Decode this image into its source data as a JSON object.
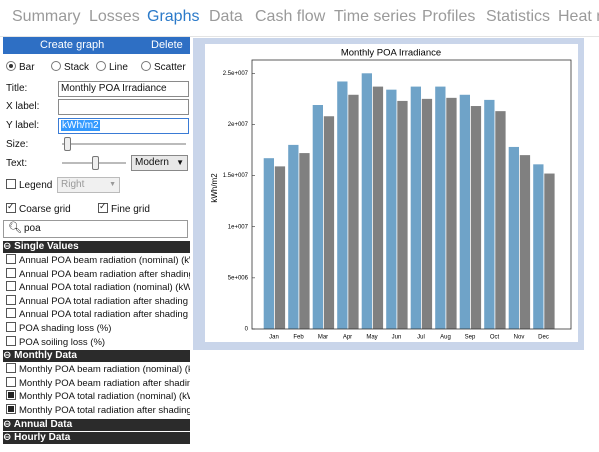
{
  "tabs": [
    "Summary",
    "Losses",
    "Graphs",
    "Data",
    "Cash flow",
    "Time series",
    "Profiles",
    "Statistics",
    "Heat m"
  ],
  "sidebar": {
    "create": "Create graph",
    "delete": "Delete",
    "types": [
      "Bar",
      "Stack",
      "Line",
      "Scatter"
    ],
    "title_label": "Title:",
    "title_value": "Monthly POA Irradiance",
    "xlabel_label": "X label:",
    "ylabel_label": "Y label:",
    "ylabel_value": "kWh/m2",
    "size_label": "Size:",
    "text_label": "Text:",
    "font": "Modern",
    "legend": "Legend",
    "legend_pos": "Right",
    "coarse_grid": "Coarse grid",
    "fine_grid": "Fine grid",
    "search": "poa",
    "groups": [
      {
        "title": "Single Values",
        "items": [
          {
            "label": "Annual POA beam radiation (nominal) (kWh/",
            "checked": false
          },
          {
            "label": "Annual POA beam radiation after shading a",
            "checked": false
          },
          {
            "label": "Annual POA total radiation (nominal) (kWh)",
            "checked": false
          },
          {
            "label": "Annual POA total radiation after shading an",
            "checked": false
          },
          {
            "label": "Annual POA total radiation after shading on",
            "checked": false
          },
          {
            "label": "POA shading loss (%)",
            "checked": false
          },
          {
            "label": "POA soiling loss (%)",
            "checked": false
          }
        ]
      },
      {
        "title": "Monthly Data",
        "items": [
          {
            "label": "Monthly POA beam radiation (nominal) (kWh",
            "checked": false
          },
          {
            "label": "Monthly POA beam radiation after shading",
            "checked": false
          },
          {
            "label": "Monthly POA total radiation (nominal) (kWh",
            "checked": true
          },
          {
            "label": "Monthly POA total radiation after shading a",
            "checked": true
          }
        ]
      },
      {
        "title": "Annual Data",
        "items": []
      },
      {
        "title": "Hourly Data",
        "items": []
      }
    ]
  },
  "chart_data": {
    "type": "bar",
    "title": "Monthly POA Irradiance",
    "y_label": "kWh/m2",
    "categories": [
      "Jan",
      "Feb",
      "Mar",
      "Apr",
      "May",
      "Jun",
      "Jul",
      "Aug",
      "Sep",
      "Oct",
      "Nov",
      "Dec"
    ],
    "series": [
      {
        "color": "#6fa3c8",
        "values": [
          16700000,
          18000000,
          21900000,
          24200000,
          25000000,
          23400000,
          23700000,
          23700000,
          22900000,
          22400000,
          17800000,
          16100000
        ]
      },
      {
        "color": "#808080",
        "values": [
          15900000,
          17200000,
          20800000,
          22900000,
          23700000,
          22300000,
          22500000,
          22600000,
          21800000,
          21300000,
          17000000,
          15200000
        ]
      }
    ],
    "ylim": [
      0,
      26300000
    ],
    "yticks": [
      0,
      {
        "value": 5000000,
        "label": "5e+006"
      },
      {
        "value": 10000000,
        "label": "1e+007"
      },
      {
        "value": 15000000,
        "label": "1.5e+007"
      },
      {
        "value": 20000000,
        "label": "2e+007"
      },
      {
        "value": 25000000,
        "label": "2.5e+007"
      }
    ],
    "grid": false
  }
}
